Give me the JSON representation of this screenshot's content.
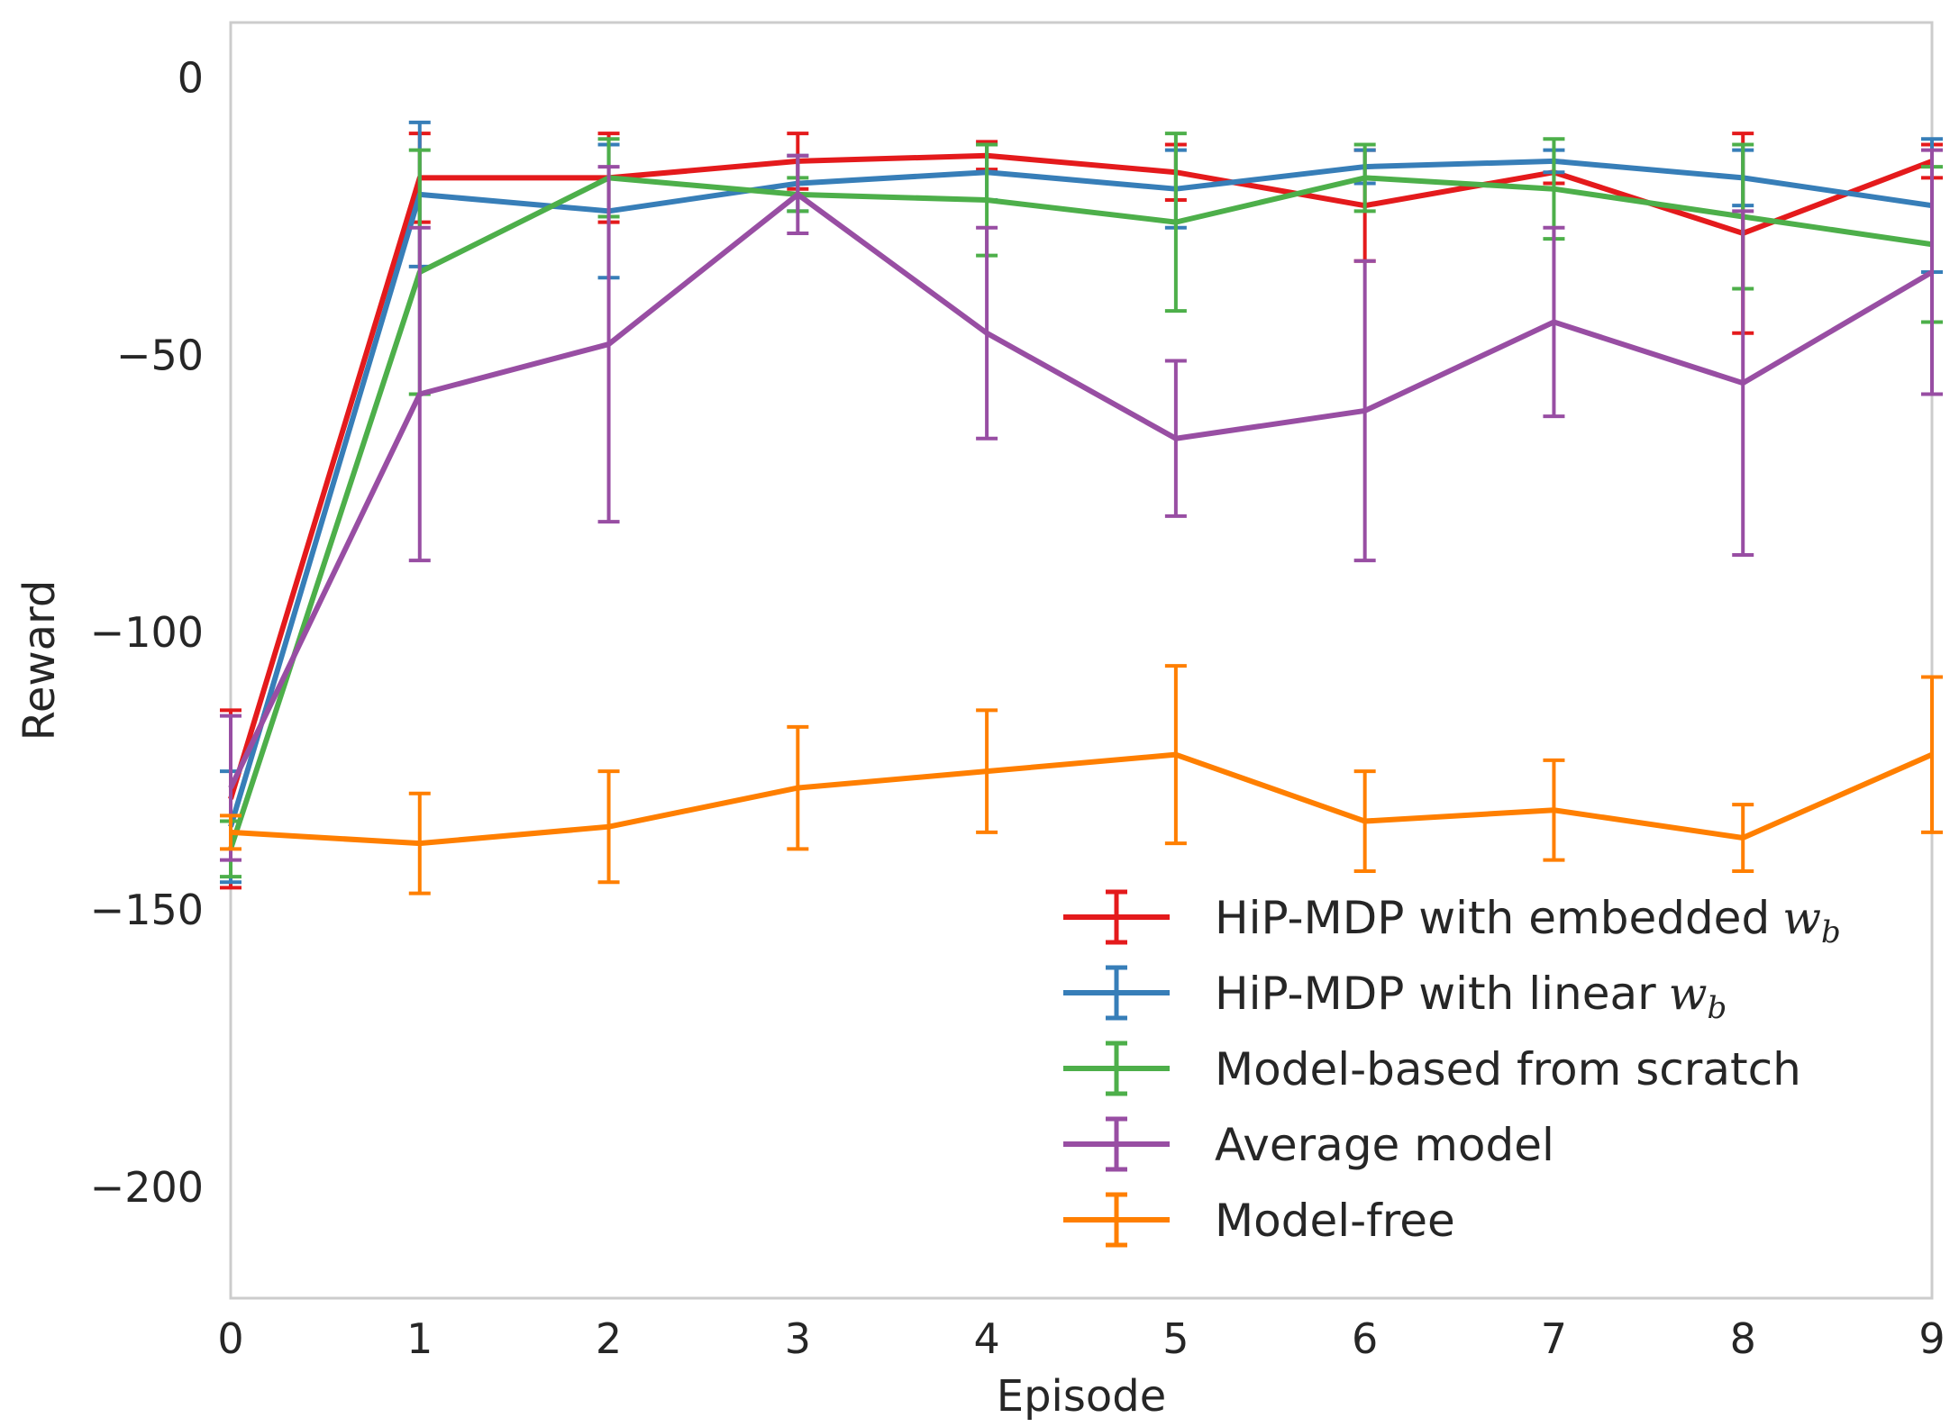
{
  "chart_data": {
    "type": "line",
    "title": "",
    "xlabel": "Episode",
    "ylabel": "Reward",
    "xlim": [
      0,
      9
    ],
    "ylim": [
      -220,
      10
    ],
    "grid": false,
    "legend_position": "lower-right",
    "x": [
      0,
      1,
      2,
      3,
      4,
      5,
      6,
      7,
      8,
      9
    ],
    "xticks": [
      "0",
      "1",
      "2",
      "3",
      "4",
      "5",
      "6",
      "7",
      "8",
      "9"
    ],
    "yticks": [
      {
        "value": 0,
        "label": "0"
      },
      {
        "value": -50,
        "label": "−50"
      },
      {
        "value": -100,
        "label": "−100"
      },
      {
        "value": -150,
        "label": "−150"
      },
      {
        "value": -200,
        "label": "−200"
      }
    ],
    "series": [
      {
        "name": "HiP-MDP with embedded",
        "math": "w",
        "math_sub": "b",
        "color": "#e41a1c",
        "values": [
          -130,
          -18,
          -18,
          -15,
          -14,
          -17,
          -23,
          -17,
          -28,
          -15
        ],
        "errors": [
          16,
          8,
          8,
          5,
          2.5,
          5,
          10,
          2,
          18,
          3
        ]
      },
      {
        "name": "HiP-MDP with linear",
        "math": "w",
        "math_sub": "b",
        "color": "#377eb8",
        "values": [
          -135,
          -21,
          -24,
          -19,
          -17,
          -20,
          -16,
          -15,
          -18,
          -23
        ],
        "errors": [
          10,
          13,
          12,
          5,
          5,
          7,
          3,
          2,
          5,
          12
        ]
      },
      {
        "name": "Model-based from scratch",
        "color": "#4daf4a",
        "values": [
          -139,
          -35,
          -18,
          -21,
          -22,
          -26,
          -18,
          -20,
          -25,
          -30
        ],
        "errors": [
          5,
          22,
          7,
          3,
          10,
          16,
          6,
          9,
          13,
          14
        ]
      },
      {
        "name": "Average model",
        "color": "#984ea3",
        "values": [
          -128,
          -57,
          -48,
          -21,
          -46,
          -65,
          -60,
          -44,
          -55,
          -35
        ],
        "errors": [
          13,
          30,
          32,
          7,
          19,
          14,
          27,
          17,
          31,
          22
        ]
      },
      {
        "name": "Model-free",
        "color": "#ff7f00",
        "values": [
          -136,
          -138,
          -135,
          -128,
          -125,
          -122,
          -134,
          -132,
          -137,
          -122
        ],
        "errors": [
          3,
          9,
          10,
          11,
          11,
          16,
          9,
          9,
          6,
          14
        ]
      }
    ]
  }
}
